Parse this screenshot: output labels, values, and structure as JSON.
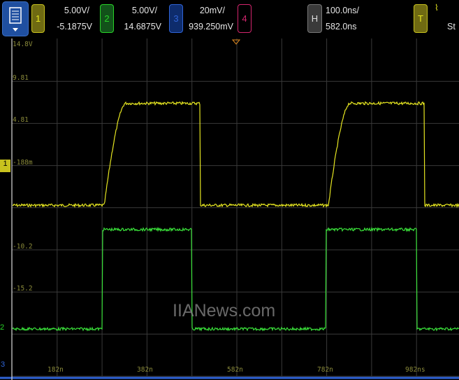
{
  "toolbar": {
    "menu_icon": "list-menu-icon",
    "ch1": {
      "label": "1",
      "scale": "5.00V/",
      "offset": "-5.1875V",
      "color": "#e6e621"
    },
    "ch2": {
      "label": "2",
      "scale": "5.00V/",
      "offset": "14.6875V",
      "color": "#28d428"
    },
    "ch3": {
      "label": "3",
      "scale": "20mV/",
      "offset": "939.250mV",
      "color": "#2f63d6"
    },
    "ch4": {
      "label": "4",
      "color": "#d4256e"
    },
    "horizontal": {
      "label": "H",
      "scale": "100.0ns/",
      "position": "582.0ns"
    },
    "trigger": {
      "label": "T",
      "edge_icon": "falling-edge-icon",
      "status": "St"
    }
  },
  "y_labels": [
    "14.8V",
    "9.81",
    "4.81",
    "-188m",
    "-10.2",
    "-15.2"
  ],
  "x_labels": [
    "182n",
    "382n",
    "582n",
    "782n",
    "982ns"
  ],
  "markers": {
    "ch1": "1",
    "ch2": "2",
    "ch3": "3"
  },
  "watermark": "IIANews.com",
  "chart_data": {
    "type": "line",
    "time_per_div_ns": 100,
    "x_range_ns": [
      82,
      1082
    ],
    "series": [
      {
        "name": "1",
        "volts_per_div": 5,
        "offset_v": -5.1875,
        "low_v": -4.9,
        "high_v": 7.2,
        "edges_ns": [
          {
            "rise": 287,
            "fall": 500
          },
          {
            "rise": 786,
            "fall": 999
          }
        ]
      },
      {
        "name": "2",
        "volts_per_div": 5,
        "offset_v": 14.6875,
        "low_v": 0.3,
        "high_v": 12.1,
        "edges_ns": [
          {
            "rise": 282,
            "fall": 481
          },
          {
            "rise": 781,
            "fall": 983
          }
        ]
      }
    ]
  }
}
